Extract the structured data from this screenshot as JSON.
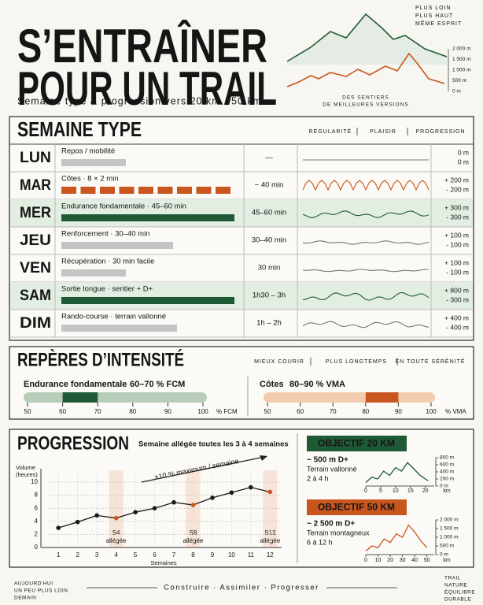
{
  "header": {
    "title_lines": [
      "S’ENTRAÎNER",
      "POUR UN TRAIL"
    ],
    "subtitle": "Semaine type & progression vers 20 km / 50 km",
    "tagline": [
      "PLUS LOIN",
      "PLUS HAUT",
      "MÊME ESPRIT"
    ],
    "altitude_labels": [
      "2 000 m",
      "1 500 m",
      "1 000 m",
      "500 m",
      "0 m"
    ],
    "caption": [
      "DES SENTIERS",
      "DE MEILLEURES VERSIONS"
    ]
  },
  "week": {
    "title": "SEMAINE TYPE",
    "tags": [
      "RÉGULARITÉ",
      "PLAISIR",
      "PROGRESSION"
    ],
    "rows": [
      {
        "day": "LUN",
        "session": "Repos / mobilité",
        "duration": "—",
        "gain": "0 m",
        "loss": "0 m"
      },
      {
        "day": "MAR",
        "session": "Côtes · 8 × 2 min",
        "duration": "~ 40 min",
        "gain": "+ 200 m",
        "loss": "- 200 m"
      },
      {
        "day": "MER",
        "session": "Endurance fondamentale · 45–60 min",
        "duration": "45–60 min",
        "gain": "+ 300 m",
        "loss": "- 300 m"
      },
      {
        "day": "JEU",
        "session": "Renforcement · 30–40 min",
        "duration": "30–40 min",
        "gain": "+ 100 m",
        "loss": "- 100 m"
      },
      {
        "day": "VEN",
        "session": "Récupération · 30 min facile",
        "duration": "30 min",
        "gain": "+ 100 m",
        "loss": "- 100 m"
      },
      {
        "day": "SAM",
        "session": "Sortie longue · sentier + D+",
        "duration": "1h30 – 3h",
        "gain": "+ 800 m",
        "loss": "- 300 m"
      },
      {
        "day": "DIM",
        "session": "Rando-course · terrain vallonné",
        "duration": "1h – 2h",
        "gain": "+ 400 m",
        "loss": "- 400 m"
      }
    ]
  },
  "intensity": {
    "title": "REPÈRES D’INTENSITÉ",
    "tags": [
      "MIEUX COURIR",
      "PLUS LONGTEMPS",
      "EN TOUTE SÉRÉNITÉ"
    ],
    "scales": [
      {
        "name": "Endurance fondamentale",
        "range_label": "60–70 % FCM",
        "zone": [
          60,
          70
        ],
        "lim": [
          50,
          100
        ],
        "ticks": [
          50,
          60,
          70,
          80,
          90,
          100
        ],
        "unit": "% FCM"
      },
      {
        "name": "Côtes",
        "range_label": "80–90 % VMA",
        "zone": [
          80,
          90
        ],
        "lim": [
          50,
          100
        ],
        "ticks": [
          50,
          60,
          70,
          80,
          90,
          100
        ],
        "unit": "% VMA"
      }
    ]
  },
  "progression": {
    "title": "PROGRESSION",
    "note": "Semaine allégée toutes les 3 à 4 semaines",
    "trend_label": "+10 % maximum / semaine",
    "y_label": [
      "Volume",
      "(heures)"
    ],
    "x_label": "Semaines",
    "chart": {
      "type": "line",
      "x": [
        1,
        2,
        3,
        4,
        5,
        6,
        7,
        8,
        9,
        10,
        11,
        12
      ],
      "values": [
        3,
        3.9,
        4.9,
        4.5,
        5.4,
        6,
        6.9,
        6.5,
        7.6,
        8.4,
        9.2,
        8.5
      ],
      "xlim": [
        0.5,
        12.6
      ],
      "ylim": [
        0,
        10
      ],
      "yticks": [
        0,
        2,
        4,
        6,
        8,
        10
      ],
      "xticks": [
        1,
        2,
        3,
        4,
        5,
        6,
        7,
        8,
        9,
        10,
        11,
        12
      ],
      "grid": true,
      "color": "#1a1a1a",
      "light_color": "#c8561e"
    },
    "light_weeks": [
      {
        "week": 4,
        "label": [
          "S4",
          "allégée"
        ]
      },
      {
        "week": 8,
        "label": [
          "S8",
          "allégée"
        ]
      },
      {
        "week": 12,
        "label": [
          "S12",
          "allégée"
        ]
      }
    ]
  },
  "objectives": [
    {
      "title": "OBJECTIF 20 KM",
      "elevation": "~ 500 m D+",
      "terrain": "Terrain vallonné",
      "duration": "2 à 4 h",
      "color": "#1f5a36",
      "profile": {
        "km": [
          0,
          2,
          4,
          6,
          8,
          10,
          12,
          14,
          16,
          18,
          20,
          21
        ],
        "elevation": [
          100,
          250,
          200,
          420,
          300,
          520,
          420,
          660,
          500,
          320,
          200,
          150
        ],
        "xlim": [
          0,
          23
        ],
        "ylim": [
          0,
          800
        ],
        "xticks": [
          0,
          5,
          10,
          15,
          20
        ],
        "x_unit": "km",
        "yticks": [
          {
            "value": 800,
            "label": "800 m"
          },
          {
            "value": 600,
            "label": "600 m"
          },
          {
            "value": 400,
            "label": "400 m"
          },
          {
            "value": 200,
            "label": "200 m"
          },
          {
            "value": 0,
            "label": "0 m"
          }
        ]
      }
    },
    {
      "title": "OBJECTIF 50 KM",
      "elevation": "~ 2 500 m D+",
      "terrain": "Terrain montagneux",
      "duration": "6 à 12 h",
      "color": "#c8561e",
      "profile": {
        "km": [
          0,
          5,
          10,
          15,
          20,
          25,
          30,
          35,
          40,
          45,
          50
        ],
        "elevation": [
          200,
          500,
          400,
          900,
          700,
          1200,
          1000,
          1700,
          1300,
          800,
          400
        ],
        "xlim": [
          0,
          56
        ],
        "ylim": [
          0,
          2000
        ],
        "xticks": [
          0,
          10,
          20,
          30,
          40,
          50
        ],
        "x_unit": "km",
        "yticks": [
          {
            "value": 2000,
            "label": "2 000 m"
          },
          {
            "value": 1500,
            "label": "1 500 m"
          },
          {
            "value": 1000,
            "label": "1 000 m"
          },
          {
            "value": 500,
            "label": "500 m"
          },
          {
            "value": 0,
            "label": "0 m"
          }
        ]
      }
    }
  ],
  "footer": {
    "left": [
      "AUJOURD’HUI",
      "UN PEU PLUS LOIN",
      "DEMAIN"
    ],
    "motto": "Construire · Assimiler · Progresser",
    "right": [
      "TRAIL",
      "NATURE",
      "ÉQUILIBRE",
      "DURABLE"
    ]
  }
}
